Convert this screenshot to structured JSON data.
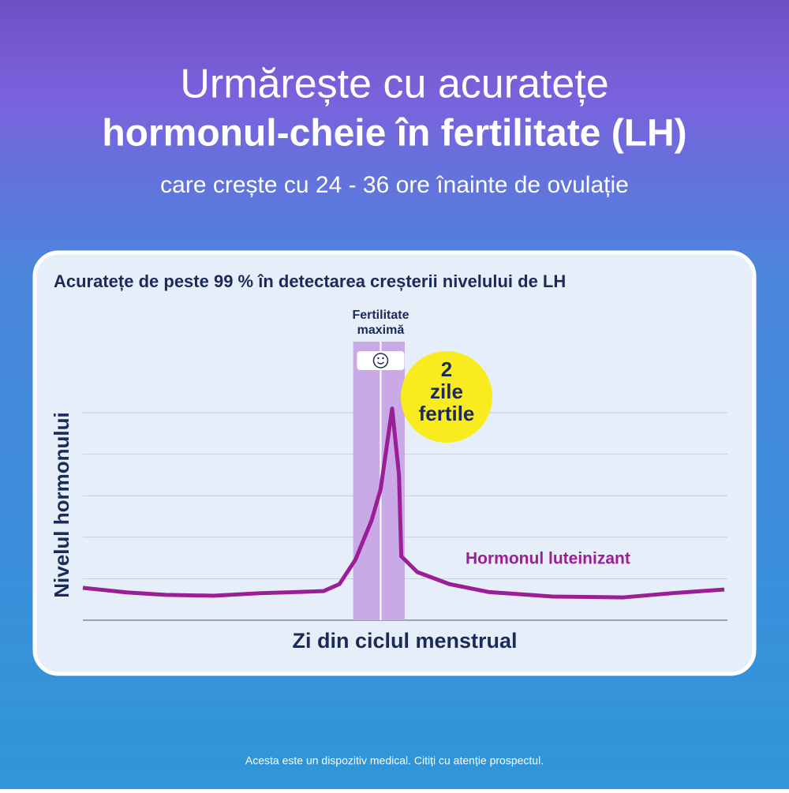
{
  "header": {
    "title_line1": "Urmărește cu acuratețe",
    "title_line2": "hormonul-cheie în fertilitate (LH)",
    "subtitle": "care crește cu 24 - 36 ore înainte de ovulație"
  },
  "chart_data": {
    "type": "line",
    "title": "Acuratețe de peste 99 % în detectarea creșterii nivelului de LH",
    "xlabel": "Zi din ciclul menstrual",
    "ylabel": "Nivelul hormonului",
    "xlim": [
      0,
      28
    ],
    "ylim": [
      0,
      5
    ],
    "yticks": [
      1,
      2,
      3,
      4,
      5
    ],
    "grid": true,
    "series": [
      {
        "name": "Hormonul luteinizant",
        "color": "#9a1e96",
        "x": [
          0,
          1.9,
          3.6,
          5.7,
          7.7,
          10.5,
          11.2,
          11.9,
          12.6,
          13,
          13.5,
          13.8,
          13.9,
          14.6,
          16,
          17.7,
          20.5,
          23.6,
          25.7,
          28
        ],
        "values": [
          0.78,
          0.67,
          0.61,
          0.59,
          0.65,
          0.7,
          0.87,
          1.46,
          2.4,
          3.16,
          5.1,
          3.5,
          1.54,
          1.16,
          0.87,
          0.68,
          0.57,
          0.55,
          0.65,
          0.74
        ]
      }
    ],
    "fertile_window": {
      "range": [
        11.8,
        14.05
      ],
      "peak": 13,
      "color": "#c9a9e6",
      "label": [
        "Fertilitate",
        "maximă"
      ]
    },
    "badge": {
      "lines": [
        "2",
        "zile",
        "fertile"
      ],
      "color": "#f8ec1e"
    }
  },
  "footer": "Acesta este un dispozitiv medical. Citiți cu atenție prospectul."
}
